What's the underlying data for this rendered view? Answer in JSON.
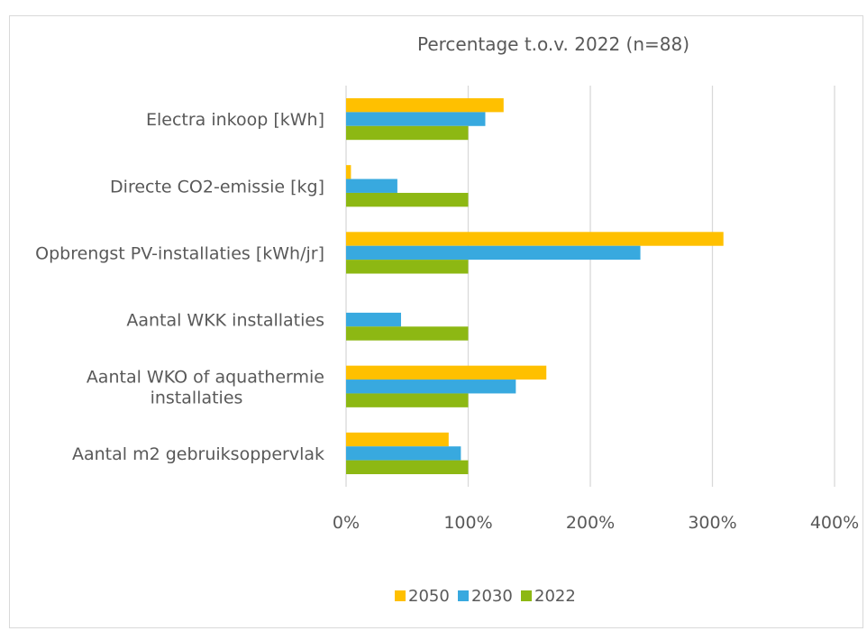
{
  "chart_data": {
    "type": "bar",
    "orientation": "horizontal",
    "title": "Percentage t.o.v. 2022 (n=88)",
    "categories": [
      "Electra inkoop [kWh]",
      "Directe CO2-emissie [kg]",
      "Opbrengst PV-installaties [kWh/jr]",
      "Aantal WKK installaties",
      "Aantal WKO of aquathermie installaties",
      "Aantal m2 gebruiksoppervlak"
    ],
    "category_lines": [
      [
        "Electra inkoop [kWh]"
      ],
      [
        "Directe CO2-emissie [kg]"
      ],
      [
        "Opbrengst PV-installaties [kWh/jr]"
      ],
      [
        "Aantal WKK installaties"
      ],
      [
        "Aantal WKO of aquathermie",
        "installaties"
      ],
      [
        "Aantal m2 gebruiksoppervlak"
      ]
    ],
    "series": [
      {
        "name": "2050",
        "color": "#FFC000",
        "values": [
          129,
          4,
          309,
          0,
          164,
          84
        ]
      },
      {
        "name": "2030",
        "color": "#38A9DF",
        "values": [
          114,
          42,
          241,
          45,
          139,
          94
        ]
      },
      {
        "name": "2022",
        "color": "#8DB813",
        "values": [
          100,
          100,
          100,
          100,
          100,
          100
        ]
      }
    ],
    "xlim": [
      0,
      400
    ],
    "xticks": [
      0,
      100,
      200,
      300,
      400
    ],
    "tick_labels": [
      "0%",
      "100%",
      "200%",
      "300%",
      "400%"
    ],
    "grid": "vertical",
    "legend_position": "bottom"
  }
}
